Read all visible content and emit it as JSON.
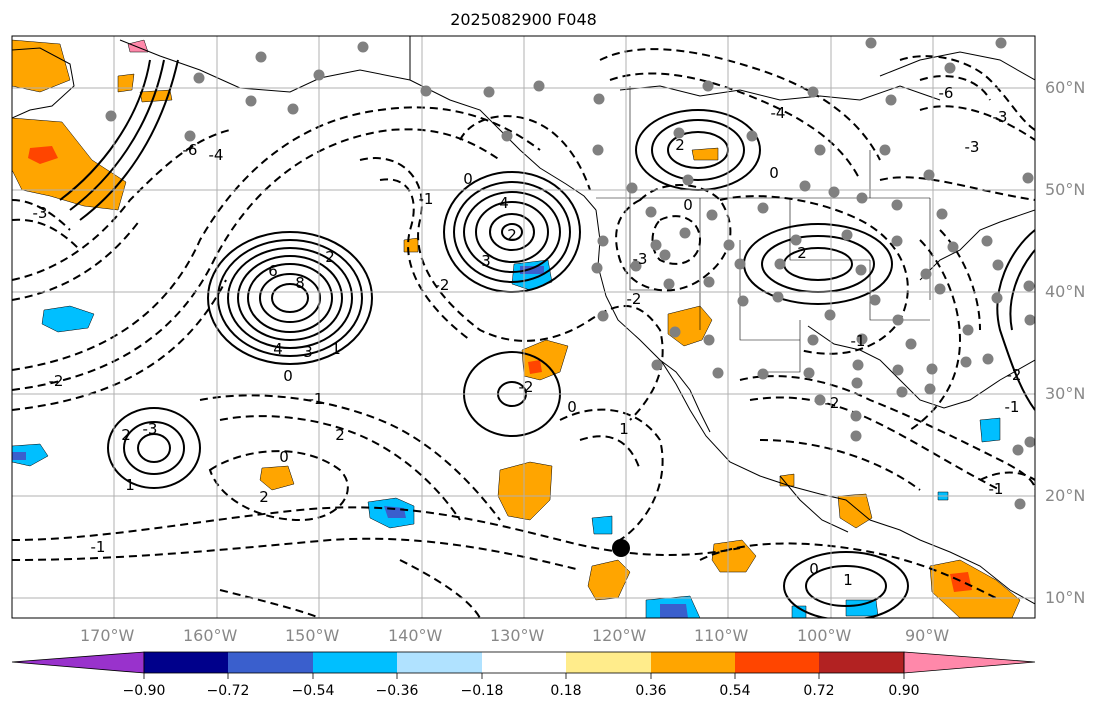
{
  "title": "2025082900 F048",
  "longitudes": [
    "170°W",
    "160°W",
    "150°W",
    "140°W",
    "130°W",
    "120°W",
    "110°W",
    "100°W",
    "90°W"
  ],
  "latitudes": [
    "60°N",
    "50°N",
    "40°N",
    "30°N",
    "20°N",
    "10°N"
  ],
  "colorbar": {
    "ticks": [
      "−0.90",
      "−0.72",
      "−0.54",
      "−0.36",
      "−0.18",
      "0.18",
      "0.36",
      "0.54",
      "0.72",
      "0.90"
    ],
    "colors": [
      "#9932cc",
      "#00008b",
      "#3a5fcd",
      "#00bfff",
      "#b0e2ff",
      "#ffffff",
      "#ffec8b",
      "#ffa500",
      "#ff4500",
      "#b22222",
      "#ff88aa"
    ]
  },
  "contour_labels": [
    "2",
    "6",
    "8",
    "4",
    "3",
    "1",
    "0",
    "-1",
    "-2",
    "-3",
    "-4",
    "-6",
    "2",
    "4",
    "3",
    "0",
    "-1",
    "-2",
    "-3",
    "2",
    "1",
    "-1",
    "0",
    "2",
    "2",
    "-2",
    "0",
    "1",
    "-2",
    "-3",
    "2",
    "-4",
    "-6",
    "-3",
    "2",
    "0",
    "0",
    "-1",
    "-2",
    "0",
    "1",
    "-1",
    "-2",
    "-3",
    "-1"
  ],
  "colors": {
    "frame": "#000000",
    "grid": "#b0b0b0",
    "station": "#808080",
    "orange": "#ffa500",
    "lightblue": "#00bfff"
  }
}
